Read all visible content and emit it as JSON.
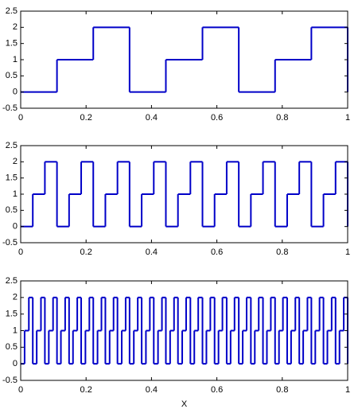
{
  "chart_data": [
    {
      "type": "step",
      "color": "#0000c8",
      "x": [
        0,
        0.111,
        0.222,
        0.333,
        0.444,
        0.556,
        0.667,
        0.778,
        0.889,
        1
      ],
      "values": [
        0,
        1,
        2,
        0,
        1,
        2,
        0,
        1,
        2,
        0
      ],
      "xlim": [
        0,
        1
      ],
      "ylim": [
        -0.5,
        2.5
      ],
      "xticks": [
        0,
        0.2,
        0.4,
        0.6,
        0.8,
        1
      ],
      "yticks": [
        -0.5,
        0,
        0.5,
        1,
        1.5,
        2,
        2.5
      ]
    },
    {
      "type": "step",
      "color": "#0000c8",
      "x": [
        0,
        0.037,
        0.074,
        0.111,
        0.148,
        0.185,
        0.222,
        0.259,
        0.296,
        0.333,
        0.37,
        0.407,
        0.444,
        0.481,
        0.519,
        0.556,
        0.593,
        0.63,
        0.667,
        0.704,
        0.741,
        0.778,
        0.815,
        0.852,
        0.889,
        0.926,
        0.963,
        1
      ],
      "values": [
        0,
        1,
        2,
        0,
        1,
        2,
        0,
        1,
        2,
        0,
        1,
        2,
        0,
        1,
        2,
        0,
        1,
        2,
        0,
        1,
        2,
        0,
        1,
        2,
        0,
        1,
        2,
        0
      ],
      "xlim": [
        0,
        1
      ],
      "ylim": [
        -0.5,
        2.5
      ],
      "xticks": [
        0,
        0.2,
        0.4,
        0.6,
        0.8,
        1
      ],
      "yticks": [
        -0.5,
        0,
        0.5,
        1,
        1.5,
        2,
        2.5
      ]
    },
    {
      "type": "step",
      "color": "#0000c8",
      "xlabel": "X",
      "x": [
        0,
        0.012,
        0.025,
        0.037,
        0.049,
        0.062,
        0.074,
        0.086,
        0.099,
        0.111,
        0.123,
        0.136,
        0.148,
        0.16,
        0.173,
        0.185,
        0.198,
        0.21,
        0.222,
        0.235,
        0.247,
        0.259,
        0.272,
        0.284,
        0.296,
        0.309,
        0.321,
        0.333,
        0.346,
        0.358,
        0.37,
        0.383,
        0.395,
        0.407,
        0.42,
        0.432,
        0.444,
        0.457,
        0.469,
        0.481,
        0.494,
        0.506,
        0.519,
        0.531,
        0.543,
        0.556,
        0.568,
        0.58,
        0.593,
        0.605,
        0.617,
        0.63,
        0.642,
        0.654,
        0.667,
        0.679,
        0.691,
        0.704,
        0.716,
        0.728,
        0.741,
        0.753,
        0.765,
        0.778,
        0.79,
        0.802,
        0.815,
        0.827,
        0.84,
        0.852,
        0.864,
        0.877,
        0.889,
        0.901,
        0.914,
        0.926,
        0.938,
        0.951,
        0.963,
        0.975,
        0.988,
        1
      ],
      "values": [
        0,
        1,
        2,
        0,
        1,
        2,
        0,
        1,
        2,
        0,
        1,
        2,
        0,
        1,
        2,
        0,
        1,
        2,
        0,
        1,
        2,
        0,
        1,
        2,
        0,
        1,
        2,
        0,
        1,
        2,
        0,
        1,
        2,
        0,
        1,
        2,
        0,
        1,
        2,
        0,
        1,
        2,
        0,
        1,
        2,
        0,
        1,
        2,
        0,
        1,
        2,
        0,
        1,
        2,
        0,
        1,
        2,
        0,
        1,
        2,
        0,
        1,
        2,
        0,
        1,
        2,
        0,
        1,
        2,
        0,
        1,
        2,
        0,
        1,
        2,
        0,
        1,
        2,
        0,
        1,
        2,
        0
      ],
      "xlim": [
        0,
        1
      ],
      "ylim": [
        -0.5,
        2.5
      ],
      "xticks": [
        0,
        0.2,
        0.4,
        0.6,
        0.8,
        1
      ],
      "yticks": [
        -0.5,
        0,
        0.5,
        1,
        1.5,
        2,
        2.5
      ]
    }
  ]
}
